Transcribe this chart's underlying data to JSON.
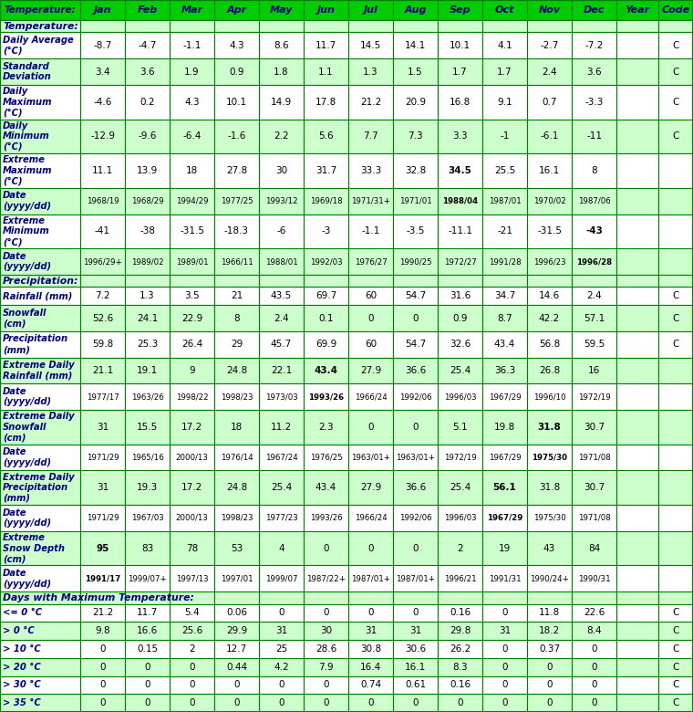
{
  "header_bg": "#00cc00",
  "header_text_color": "#000080",
  "light_green": "#ccffcc",
  "white": "#ffffff",
  "border_color": "#008000",
  "columns": [
    "Jan",
    "Feb",
    "Mar",
    "Apr",
    "May",
    "Jun",
    "Jul",
    "Aug",
    "Sep",
    "Oct",
    "Nov",
    "Dec",
    "Year",
    "Code"
  ],
  "rows": [
    {
      "label": "Temperature:",
      "section": true,
      "bg": "#ccffcc",
      "values": [
        "",
        "",
        "",
        "",
        "",
        "",
        "",
        "",
        "",
        "",
        "",
        "",
        "",
        ""
      ],
      "bold_vals": []
    },
    {
      "label": "Daily Average\n(°C)",
      "section": false,
      "bg": "#ffffff",
      "values": [
        "-8.7",
        "-4.7",
        "-1.1",
        "4.3",
        "8.6",
        "11.7",
        "14.5",
        "14.1",
        "10.1",
        "4.1",
        "-2.7",
        "-7.2",
        "",
        "C"
      ],
      "bold_vals": []
    },
    {
      "label": "Standard\nDeviation",
      "section": false,
      "bg": "#ccffcc",
      "values": [
        "3.4",
        "3.6",
        "1.9",
        "0.9",
        "1.8",
        "1.1",
        "1.3",
        "1.5",
        "1.7",
        "1.7",
        "2.4",
        "3.6",
        "",
        "C"
      ],
      "bold_vals": []
    },
    {
      "label": "Daily\nMaximum\n(°C)",
      "section": false,
      "bg": "#ffffff",
      "values": [
        "-4.6",
        "0.2",
        "4.3",
        "10.1",
        "14.9",
        "17.8",
        "21.2",
        "20.9",
        "16.8",
        "9.1",
        "0.7",
        "-3.3",
        "",
        "C"
      ],
      "bold_vals": []
    },
    {
      "label": "Daily\nMinimum\n(°C)",
      "section": false,
      "bg": "#ccffcc",
      "values": [
        "-12.9",
        "-9.6",
        "-6.4",
        "-1.6",
        "2.2",
        "5.6",
        "7.7",
        "7.3",
        "3.3",
        "-1",
        "-6.1",
        "-11",
        "",
        "C"
      ],
      "bold_vals": []
    },
    {
      "label": "Extreme\nMaximum\n(°C)",
      "section": false,
      "bg": "#ffffff",
      "values": [
        "11.1",
        "13.9",
        "18",
        "27.8",
        "30",
        "31.7",
        "33.3",
        "32.8",
        "34.5",
        "25.5",
        "16.1",
        "8",
        "",
        ""
      ],
      "bold_vals": [
        8
      ]
    },
    {
      "label": "Date\n(yyyy/dd)",
      "section": false,
      "bg": "#ccffcc",
      "values": [
        "1968/19",
        "1968/29",
        "1994/29",
        "1977/25",
        "1993/12",
        "1969/18",
        "1971/31+",
        "1971/01",
        "1988/04",
        "1987/01",
        "1970/02",
        "1987/06",
        "",
        ""
      ],
      "bold_vals": [
        8
      ]
    },
    {
      "label": "Extreme\nMinimum\n(°C)",
      "section": false,
      "bg": "#ffffff",
      "values": [
        "-41",
        "-38",
        "-31.5",
        "-18.3",
        "-6",
        "-3",
        "-1.1",
        "-3.5",
        "-11.1",
        "-21",
        "-31.5",
        "-43",
        "",
        ""
      ],
      "bold_vals": [
        11
      ]
    },
    {
      "label": "Date\n(yyyy/dd)",
      "section": false,
      "bg": "#ccffcc",
      "values": [
        "1996/29+",
        "1989/02",
        "1989/01",
        "1966/11",
        "1988/01",
        "1992/03",
        "1976/27",
        "1990/25",
        "1972/27",
        "1991/28",
        "1996/23",
        "1996/28",
        "",
        ""
      ],
      "bold_vals": [
        11
      ]
    },
    {
      "label": "Precipitation:",
      "section": true,
      "bg": "#ccffcc",
      "values": [
        "",
        "",
        "",
        "",
        "",
        "",
        "",
        "",
        "",
        "",
        "",
        "",
        "",
        ""
      ],
      "bold_vals": []
    },
    {
      "label": "Rainfall (mm)",
      "section": false,
      "bg": "#ffffff",
      "values": [
        "7.2",
        "1.3",
        "3.5",
        "21",
        "43.5",
        "69.7",
        "60",
        "54.7",
        "31.6",
        "34.7",
        "14.6",
        "2.4",
        "",
        "C"
      ],
      "bold_vals": []
    },
    {
      "label": "Snowfall\n(cm)",
      "section": false,
      "bg": "#ccffcc",
      "values": [
        "52.6",
        "24.1",
        "22.9",
        "8",
        "2.4",
        "0.1",
        "0",
        "0",
        "0.9",
        "8.7",
        "42.2",
        "57.1",
        "",
        "C"
      ],
      "bold_vals": []
    },
    {
      "label": "Precipitation\n(mm)",
      "section": false,
      "bg": "#ffffff",
      "values": [
        "59.8",
        "25.3",
        "26.4",
        "29",
        "45.7",
        "69.9",
        "60",
        "54.7",
        "32.6",
        "43.4",
        "56.8",
        "59.5",
        "",
        "C"
      ],
      "bold_vals": []
    },
    {
      "label": "Extreme Daily\nRainfall (mm)",
      "section": false,
      "bg": "#ccffcc",
      "values": [
        "21.1",
        "19.1",
        "9",
        "24.8",
        "22.1",
        "43.4",
        "27.9",
        "36.6",
        "25.4",
        "36.3",
        "26.8",
        "16",
        "",
        ""
      ],
      "bold_vals": [
        5
      ]
    },
    {
      "label": "Date\n(yyyy/dd)",
      "section": false,
      "bg": "#ffffff",
      "values": [
        "1977/17",
        "1963/26",
        "1998/22",
        "1998/23",
        "1973/03",
        "1993/26",
        "1966/24",
        "1992/06",
        "1996/03",
        "1967/29",
        "1996/10",
        "1972/19",
        "",
        ""
      ],
      "bold_vals": [
        5
      ]
    },
    {
      "label": "Extreme Daily\nSnowfall\n(cm)",
      "section": false,
      "bg": "#ccffcc",
      "values": [
        "31",
        "15.5",
        "17.2",
        "18",
        "11.2",
        "2.3",
        "0",
        "0",
        "5.1",
        "19.8",
        "31.8",
        "30.7",
        "",
        ""
      ],
      "bold_vals": [
        10
      ]
    },
    {
      "label": "Date\n(yyyy/dd)",
      "section": false,
      "bg": "#ffffff",
      "values": [
        "1971/29",
        "1965/16",
        "2000/13",
        "1976/14",
        "1967/24",
        "1976/25",
        "1963/01+",
        "1963/01+",
        "1972/19",
        "1967/29",
        "1975/30",
        "1971/08",
        "",
        ""
      ],
      "bold_vals": [
        10
      ]
    },
    {
      "label": "Extreme Daily\nPrecipitation\n(mm)",
      "section": false,
      "bg": "#ccffcc",
      "values": [
        "31",
        "19.3",
        "17.2",
        "24.8",
        "25.4",
        "43.4",
        "27.9",
        "36.6",
        "25.4",
        "56.1",
        "31.8",
        "30.7",
        "",
        ""
      ],
      "bold_vals": [
        9
      ]
    },
    {
      "label": "Date\n(yyyy/dd)",
      "section": false,
      "bg": "#ffffff",
      "values": [
        "1971/29",
        "1967/03",
        "2000/13",
        "1998/23",
        "1977/23",
        "1993/26",
        "1966/24",
        "1992/06",
        "1996/03",
        "1967/29",
        "1975/30",
        "1971/08",
        "",
        ""
      ],
      "bold_vals": [
        9
      ]
    },
    {
      "label": "Extreme\nSnow Depth\n(cm)",
      "section": false,
      "bg": "#ccffcc",
      "values": [
        "95",
        "83",
        "78",
        "53",
        "4",
        "0",
        "0",
        "0",
        "2",
        "19",
        "43",
        "84",
        "",
        ""
      ],
      "bold_vals": [
        0
      ]
    },
    {
      "label": "Date\n(yyyy/dd)",
      "section": false,
      "bg": "#ffffff",
      "values": [
        "1991/17",
        "1999/07+",
        "1997/13",
        "1997/01",
        "1999/07",
        "1987/22+",
        "1987/01+",
        "1987/01+",
        "1996/21",
        "1991/31",
        "1990/24+",
        "1990/31",
        "",
        ""
      ],
      "bold_vals": [
        0
      ]
    },
    {
      "label": "Days with Maximum Temperature:",
      "section": true,
      "bg": "#ccffcc",
      "values": [
        "",
        "",
        "",
        "",
        "",
        "",
        "",
        "",
        "",
        "",
        "",
        "",
        "",
        ""
      ],
      "bold_vals": []
    },
    {
      "label": "<= 0 °C",
      "section": false,
      "bg": "#ffffff",
      "values": [
        "21.2",
        "11.7",
        "5.4",
        "0.06",
        "0",
        "0",
        "0",
        "0",
        "0.16",
        "0",
        "11.8",
        "22.6",
        "",
        "C"
      ],
      "bold_vals": []
    },
    {
      "label": "> 0 °C",
      "section": false,
      "bg": "#ccffcc",
      "values": [
        "9.8",
        "16.6",
        "25.6",
        "29.9",
        "31",
        "30",
        "31",
        "31",
        "29.8",
        "31",
        "18.2",
        "8.4",
        "",
        "C"
      ],
      "bold_vals": []
    },
    {
      "label": "> 10 °C",
      "section": false,
      "bg": "#ffffff",
      "values": [
        "0",
        "0.15",
        "2",
        "12.7",
        "25",
        "28.6",
        "30.8",
        "30.6",
        "26.2",
        "0",
        "0.37",
        "0",
        "",
        "C"
      ],
      "bold_vals": []
    },
    {
      "label": "> 20 °C",
      "section": false,
      "bg": "#ccffcc",
      "values": [
        "0",
        "0",
        "0",
        "0.44",
        "4.2",
        "7.9",
        "16.4",
        "16.1",
        "8.3",
        "0",
        "0",
        "0",
        "",
        "C"
      ],
      "bold_vals": []
    },
    {
      "label": "> 30 °C",
      "section": false,
      "bg": "#ffffff",
      "values": [
        "0",
        "0",
        "0",
        "0",
        "0",
        "0",
        "0.74",
        "0.61",
        "0.16",
        "0",
        "0",
        "0",
        "",
        "C"
      ],
      "bold_vals": []
    },
    {
      "label": "> 35 °C",
      "section": false,
      "bg": "#ccffcc",
      "values": [
        "0",
        "0",
        "0",
        "0",
        "0",
        "0",
        "0",
        "0",
        "0",
        "0",
        "0",
        "0",
        "",
        "C"
      ],
      "bold_vals": []
    }
  ]
}
